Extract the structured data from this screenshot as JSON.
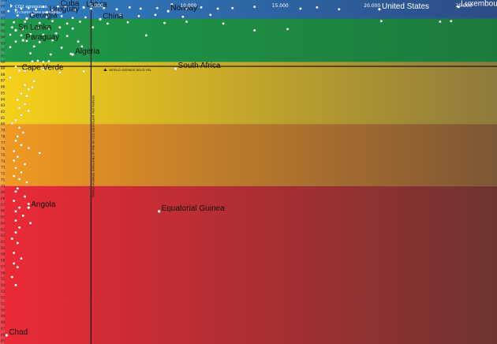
{
  "chart_data": {
    "type": "scatter",
    "title": "CO2 emissions (in metric tons per capita)",
    "title_line1": "CO2 emissions",
    "title_line2": "(in metric tons per capita)",
    "xlim": [
      0,
      26800
    ],
    "ylim": [
      44.5,
      100
    ],
    "x_ticks": [
      "5.000",
      "10.000",
      "15.000",
      "20.000",
      "25.000"
    ],
    "x_tick_values": [
      5000,
      10000,
      15000,
      20000,
      25000
    ],
    "bands": [
      {
        "from": 90,
        "to": 100,
        "color_left": "#2f7fc4",
        "color_right": "#2c4d86"
      },
      {
        "from": 80,
        "to": 90,
        "color_left": "#f7d21a",
        "color_right": "#8e7a3c"
      },
      {
        "from": 70,
        "to": 80,
        "color_left": "#f29a22",
        "color_right": "#7d5634"
      },
      {
        "from": 44.5,
        "to": 70,
        "color_left": "#ec2a36",
        "color_right": "#6e3430"
      }
    ],
    "sub_band": {
      "from": 90,
      "to": 97,
      "color_left": "#1e9a49",
      "color_right": "#1d7a3e"
    },
    "reference_lines": {
      "world_average_x": 4700,
      "world_average_y": 89.3,
      "vertical_label": "WORLD AVERAGE EMISSIONS AT THE OF CO2 EQUIVALENT PER PERSON",
      "horizontal_label": "WORLD AVERAGE BOLD HEL"
    },
    "labeled_points": [
      {
        "name": "Cuba",
        "x": 2900,
        "y": 98.9
      },
      {
        "name": "Latvia",
        "x": 4300,
        "y": 98.8
      },
      {
        "name": "Uruguay",
        "x": 2300,
        "y": 98.0
      },
      {
        "name": "Georgia",
        "x": 1200,
        "y": 97.0
      },
      {
        "name": "China",
        "x": 5200,
        "y": 96.9
      },
      {
        "name": "Norway",
        "x": 8900,
        "y": 98.2
      },
      {
        "name": "United States",
        "x": 20400,
        "y": 98.5
      },
      {
        "name": "Luxembourg",
        "x": 24700,
        "y": 98.9
      },
      {
        "name": "Sri Lanka",
        "x": 600,
        "y": 95.1
      },
      {
        "name": "Paraguay",
        "x": 1000,
        "y": 93.5
      },
      {
        "name": "Algeria",
        "x": 3700,
        "y": 91.2
      },
      {
        "name": "Cape Verde",
        "x": 800,
        "y": 88.6
      },
      {
        "name": "South Africa",
        "x": 9300,
        "y": 88.9
      },
      {
        "name": "Angola",
        "x": 1300,
        "y": 66.5
      },
      {
        "name": "Equatorial Guinea",
        "x": 8400,
        "y": 65.9
      },
      {
        "name": "Chad",
        "x": 100,
        "y": 45.9
      }
    ],
    "points": [
      [
        200,
        98.2
      ],
      [
        600,
        98.4
      ],
      [
        900,
        98.6
      ],
      [
        1300,
        98.7
      ],
      [
        1700,
        98.5
      ],
      [
        2100,
        98.9
      ],
      [
        2600,
        98.3
      ],
      [
        3300,
        98.8
      ],
      [
        3800,
        98.4
      ],
      [
        4700,
        98.6
      ],
      [
        5400,
        98.7
      ],
      [
        6100,
        98.5
      ],
      [
        6800,
        98.8
      ],
      [
        7400,
        98.6
      ],
      [
        8300,
        98.7
      ],
      [
        9100,
        99.3
      ],
      [
        9900,
        98.6
      ],
      [
        10700,
        98.8
      ],
      [
        11600,
        98.6
      ],
      [
        12400,
        98.7
      ],
      [
        13600,
        98.9
      ],
      [
        16100,
        98.6
      ],
      [
        17000,
        98.8
      ],
      [
        18200,
        98.5
      ],
      [
        700,
        97.5
      ],
      [
        1500,
        97.6
      ],
      [
        2300,
        97.3
      ],
      [
        3100,
        97.4
      ],
      [
        3700,
        97.1
      ],
      [
        4400,
        97.2
      ],
      [
        6300,
        97.6
      ],
      [
        7300,
        97.4
      ],
      [
        8200,
        97.6
      ],
      [
        9700,
        97.3
      ],
      [
        11200,
        97.6
      ],
      [
        500,
        96.4
      ],
      [
        1100,
        96.5
      ],
      [
        1900,
        96.3
      ],
      [
        2600,
        96.6
      ],
      [
        3400,
        96.2
      ],
      [
        4100,
        96.5
      ],
      [
        5600,
        96.2
      ],
      [
        6700,
        96.4
      ],
      [
        8700,
        96.3
      ],
      [
        9900,
        96.5
      ],
      [
        11900,
        96.2
      ],
      [
        20500,
        96.6
      ],
      [
        23700,
        96.5
      ],
      [
        24300,
        96.6
      ],
      [
        400,
        95.6
      ],
      [
        1000,
        95.3
      ],
      [
        1800,
        95.5
      ],
      [
        2400,
        95.3
      ],
      [
        3000,
        95.6
      ],
      [
        3700,
        95.4
      ],
      [
        4800,
        95.6
      ],
      [
        13600,
        95.1
      ],
      [
        15400,
        95.3
      ],
      [
        300,
        94.4
      ],
      [
        900,
        94.3
      ],
      [
        1400,
        94.5
      ],
      [
        2100,
        94.4
      ],
      [
        2800,
        94.6
      ],
      [
        3400,
        94.2
      ],
      [
        7700,
        94.3
      ],
      [
        600,
        93.3
      ],
      [
        1200,
        93.4
      ],
      [
        1900,
        93.2
      ],
      [
        2600,
        93.5
      ],
      [
        4000,
        93.3
      ],
      [
        300,
        92.4
      ],
      [
        1600,
        92.5
      ],
      [
        3100,
        92.3
      ],
      [
        4200,
        92.5
      ],
      [
        1400,
        91.4
      ],
      [
        2500,
        91.2
      ],
      [
        3600,
        91.3
      ],
      [
        1500,
        90.1
      ],
      [
        1800,
        90.2
      ],
      [
        2100,
        90.0
      ],
      [
        2400,
        90.1
      ],
      [
        600,
        89.2
      ],
      [
        1100,
        88.6
      ],
      [
        2100,
        88.8
      ],
      [
        3000,
        88.3
      ],
      [
        4300,
        88.5
      ],
      [
        300,
        87.5
      ],
      [
        1600,
        86.9
      ],
      [
        1100,
        86.3
      ],
      [
        1500,
        85.9
      ],
      [
        1300,
        85.6
      ],
      [
        900,
        84.9
      ],
      [
        1200,
        84.5
      ],
      [
        700,
        83.9
      ],
      [
        1100,
        83.2
      ],
      [
        800,
        82.6
      ],
      [
        1300,
        82.1
      ],
      [
        900,
        81.4
      ],
      [
        600,
        80.6
      ],
      [
        400,
        80.1
      ],
      [
        800,
        79.4
      ],
      [
        1000,
        78.6
      ],
      [
        700,
        78.0
      ],
      [
        600,
        77.3
      ],
      [
        900,
        76.6
      ],
      [
        1300,
        76.1
      ],
      [
        500,
        75.6
      ],
      [
        1900,
        75.3
      ],
      [
        700,
        74.7
      ],
      [
        500,
        74.1
      ],
      [
        1100,
        73.5
      ],
      [
        600,
        72.9
      ],
      [
        900,
        72.2
      ],
      [
        500,
        71.6
      ],
      [
        800,
        71.1
      ],
      [
        1200,
        70.6
      ],
      [
        700,
        69.6
      ],
      [
        600,
        69.1
      ],
      [
        1100,
        68.3
      ],
      [
        500,
        67.6
      ],
      [
        1300,
        67.1
      ],
      [
        800,
        66.5
      ],
      [
        600,
        65.9
      ],
      [
        1000,
        65.2
      ],
      [
        600,
        64.4
      ],
      [
        1400,
        64.0
      ],
      [
        800,
        63.3
      ],
      [
        600,
        62.5
      ],
      [
        400,
        61.5
      ],
      [
        700,
        60.8
      ],
      [
        500,
        59.2
      ],
      [
        900,
        58.3
      ],
      [
        500,
        57.5
      ],
      [
        700,
        56.9
      ],
      [
        400,
        55.3
      ],
      [
        600,
        54.0
      ]
    ],
    "y_ticks": [
      "100",
      "99",
      "98",
      "97",
      "96",
      "95",
      "94",
      "93",
      "92",
      "91",
      "90",
      "89",
      "88",
      "87",
      "86",
      "85",
      "84",
      "83",
      "82",
      "81",
      "80",
      "79",
      "78",
      "77",
      "76",
      "75",
      "74",
      "73",
      "72",
      "71",
      "70",
      "69",
      "68",
      "67",
      "66",
      "65",
      "64",
      "63",
      "62",
      "61",
      "60",
      "59",
      "58",
      "57",
      "56",
      "55",
      "54",
      "53",
      "52",
      "51",
      "50",
      "49",
      "48",
      "47",
      "46",
      "45"
    ],
    "grid": false,
    "legend": "none"
  }
}
